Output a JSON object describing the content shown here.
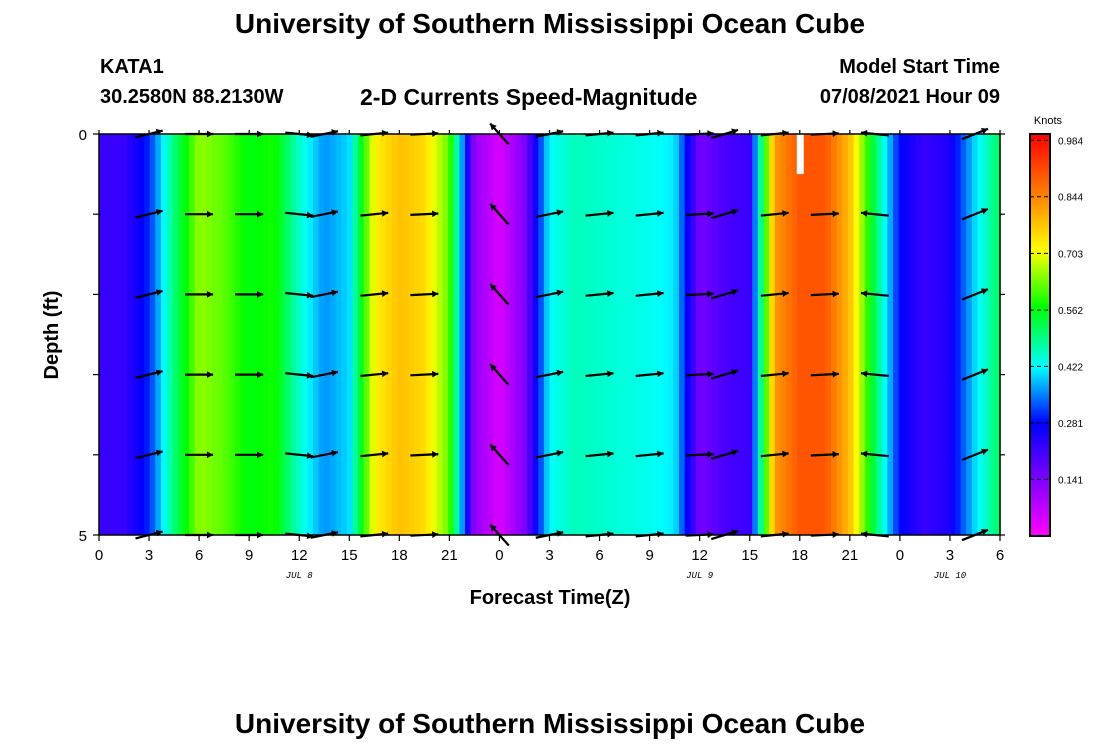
{
  "page": {
    "title_top": "University of Southern Mississippi Ocean Cube",
    "title_bottom": "University of Southern Mississippi Ocean Cube",
    "station": "KATA1",
    "coords": "30.2580N  88.2130W",
    "chart_title": "2-D Currents Speed-Magnitude",
    "model_label": "Model Start Time",
    "model_time": "07/08/2021 Hour 09"
  },
  "chart_data": {
    "type": "heatmap",
    "title": "2-D Currents Speed-Magnitude",
    "xlabel": "Forecast Time(Z)",
    "ylabel": "Depth (ft)",
    "colorbar_label": "Knots",
    "colorbar_ticks": [
      0.984,
      0.844,
      0.703,
      0.562,
      0.422,
      0.281,
      0.141
    ],
    "value_range": [
      0.0,
      1.0
    ],
    "x_tick_labels": [
      "0",
      "3",
      "6",
      "9",
      "12",
      "15",
      "18",
      "21",
      "0",
      "3",
      "6",
      "9",
      "12",
      "15",
      "18",
      "21",
      "0",
      "3",
      "6"
    ],
    "date_labels": [
      {
        "text": "JUL 8",
        "hour": 12
      },
      {
        "text": "JUL 9",
        "hour": 36
      },
      {
        "text": "JUL 10",
        "hour": 51
      }
    ],
    "y_tick_labels": [
      "0",
      "5"
    ],
    "xlim": [
      0,
      54
    ],
    "ylim": [
      0,
      5
    ],
    "depth_rows": [
      0,
      1,
      2,
      3,
      4,
      5
    ],
    "profile_hours": [
      0,
      1.5,
      3,
      4.5,
      6,
      7.5,
      9,
      10.5,
      12,
      13.5,
      15,
      16.5,
      18,
      19.5,
      21,
      22.5,
      24,
      25.5,
      27,
      28.5,
      30,
      31.5,
      33,
      34.5,
      36,
      37.5,
      39,
      40.5,
      42,
      43.5,
      45,
      46.5,
      48,
      49.5,
      51,
      52.5,
      54
    ],
    "speed_profile": [
      0.22,
      0.22,
      0.3,
      0.5,
      0.65,
      0.62,
      0.56,
      0.58,
      0.45,
      0.36,
      0.4,
      0.72,
      0.78,
      0.75,
      0.62,
      0.12,
      0.04,
      0.14,
      0.42,
      0.46,
      0.45,
      0.44,
      0.43,
      0.41,
      0.15,
      0.2,
      0.22,
      0.82,
      0.9,
      0.9,
      0.78,
      0.52,
      0.28,
      0.22,
      0.25,
      0.4,
      0.52
    ],
    "arrows": [
      {
        "hour": 3,
        "depth": 1,
        "u": 1,
        "v": 0.25
      },
      {
        "hour": 6,
        "depth": 1,
        "u": 1,
        "v": 0
      },
      {
        "hour": 9,
        "depth": 1,
        "u": 1,
        "v": 0
      },
      {
        "hour": 12,
        "depth": 1,
        "u": 1,
        "v": -0.1
      },
      {
        "hour": 13.5,
        "depth": 1,
        "u": 1,
        "v": 0.2
      },
      {
        "hour": 16.5,
        "depth": 1,
        "u": 1,
        "v": 0.1
      },
      {
        "hour": 19.5,
        "depth": 1,
        "u": 1,
        "v": 0.05
      },
      {
        "hour": 24,
        "depth": 1,
        "u": -0.8,
        "v": 0.9
      },
      {
        "hour": 27,
        "depth": 1,
        "u": 1,
        "v": 0.2
      },
      {
        "hour": 30,
        "depth": 1,
        "u": 1,
        "v": 0.1
      },
      {
        "hour": 33,
        "depth": 1,
        "u": 1,
        "v": 0.1
      },
      {
        "hour": 36,
        "depth": 1,
        "u": 1,
        "v": 0.05
      },
      {
        "hour": 37.5,
        "depth": 1,
        "u": 1,
        "v": 0.3
      },
      {
        "hour": 40.5,
        "depth": 1,
        "u": 1,
        "v": 0.1
      },
      {
        "hour": 43.5,
        "depth": 1,
        "u": 1,
        "v": 0.05
      },
      {
        "hour": 46.5,
        "depth": 1,
        "u": -1,
        "v": 0.1
      },
      {
        "hour": 52.5,
        "depth": 1,
        "u": 1,
        "v": 0.4
      }
    ],
    "white_bar": {
      "hour": 42,
      "depth_from": 0,
      "depth_to": 0.5
    }
  }
}
